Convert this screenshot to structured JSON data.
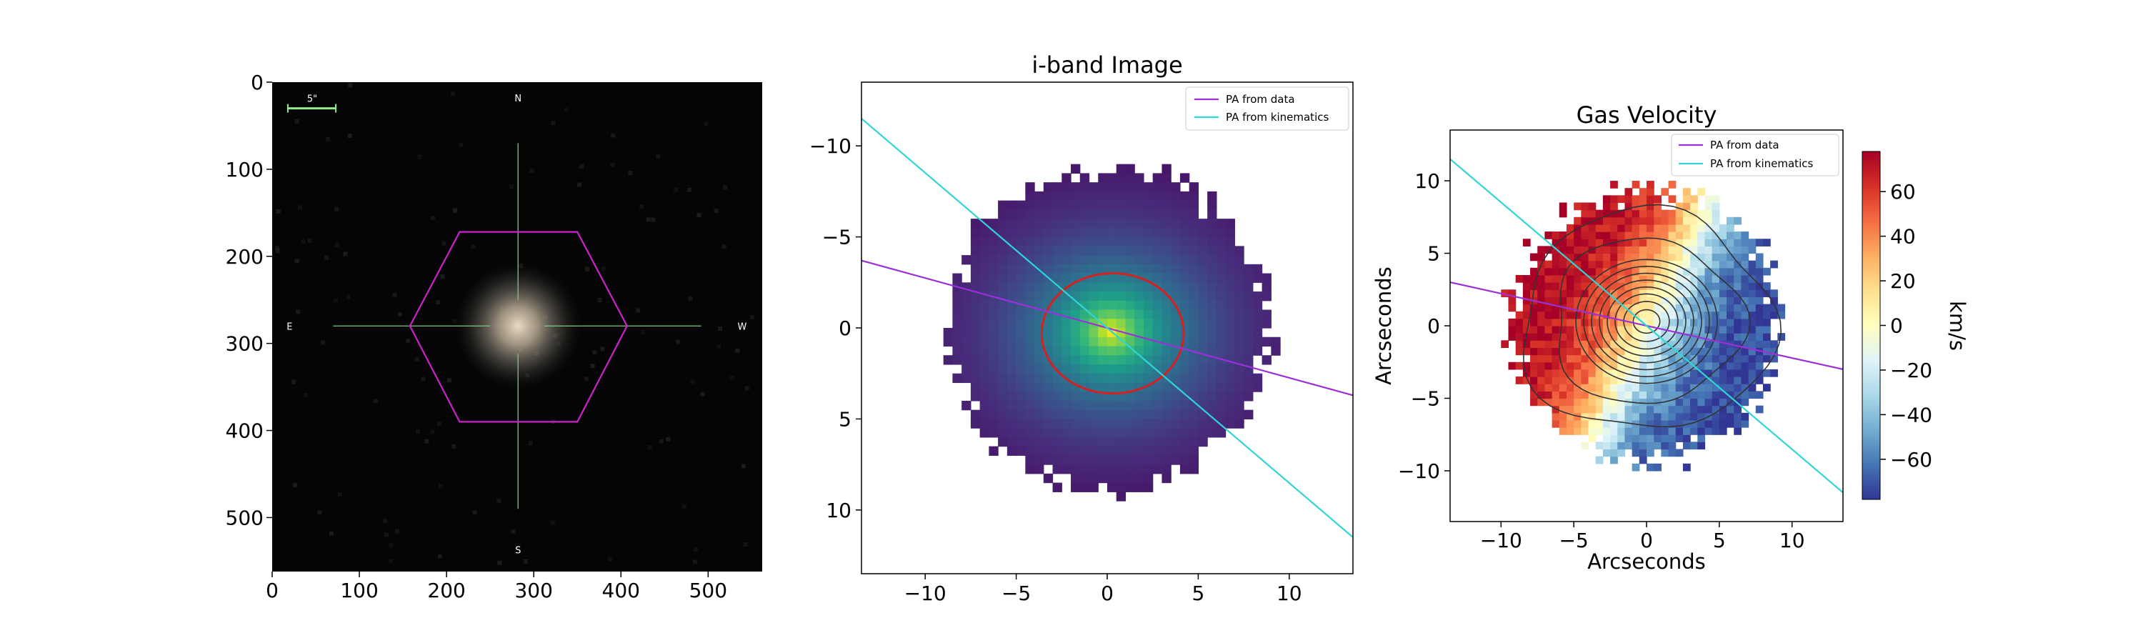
{
  "figure": {
    "panels": [
      "sdss-image",
      "i-band-image",
      "gas-velocity"
    ]
  },
  "chart_data": [
    {
      "type": "image",
      "title": "",
      "xlabel": "",
      "ylabel": "",
      "xlim": [
        0,
        562
      ],
      "ylim": [
        562,
        0
      ],
      "xticks": [
        "0",
        "100",
        "200",
        "300",
        "400",
        "500"
      ],
      "yticks": [
        "0",
        "100",
        "200",
        "300",
        "400",
        "500"
      ],
      "compass": {
        "north": "N",
        "south": "S",
        "east": "E",
        "west": "W"
      },
      "scale_bar": "5\"",
      "galaxy_center": [
        282,
        280
      ],
      "ifu_hexagon": [
        [
          215,
          172
        ],
        [
          350,
          172
        ],
        [
          407,
          280
        ],
        [
          350,
          390
        ],
        [
          215,
          390
        ],
        [
          158,
          280
        ]
      ],
      "colors": {
        "background": "#050505",
        "hexagon": "#cc22cc",
        "crosshair": "#7fc77f",
        "scale_bar": "#90ee90"
      }
    },
    {
      "type": "heatmap",
      "title": "i-band Image",
      "xlabel": "",
      "ylabel": "",
      "xlim": [
        -13.5,
        13.5
      ],
      "ylim": [
        13.5,
        -13.5
      ],
      "xticks": [
        "−10",
        "−5",
        "0",
        "5",
        "10"
      ],
      "yticks": [
        "−10",
        "−5",
        "0",
        "5",
        "10"
      ],
      "legend": {
        "position": "top-right",
        "entries": [
          "PA from data",
          "PA from kinematics"
        ]
      },
      "pa_lines": [
        {
          "name": "PA from data",
          "color": "#9b30d8",
          "points": [
            [
              -13.5,
              -3.7
            ],
            [
              13.5,
              3.7
            ]
          ]
        },
        {
          "name": "PA from kinematics",
          "color": "#30d5d5",
          "points": [
            [
              -13.5,
              -11.5
            ],
            [
              13.5,
              11.5
            ]
          ]
        }
      ],
      "ellipse": {
        "cx": 0.3,
        "cy": 0.3,
        "rx": 3.9,
        "ry": 3.3,
        "color": "#d62020"
      },
      "map": {
        "radius": 9.5,
        "core_scale": 3.2,
        "colormap": "viridis"
      }
    },
    {
      "type": "heatmap",
      "title": "Gas Velocity",
      "xlabel": "Arcseconds",
      "ylabel": "Arcseconds",
      "xlim": [
        -13.5,
        13.5
      ],
      "ylim": [
        -13.5,
        13.5
      ],
      "xticks": [
        "−10",
        "−5",
        "0",
        "5",
        "10"
      ],
      "yticks": [
        "−10",
        "−5",
        "0",
        "5",
        "10"
      ],
      "legend": {
        "position": "top-right",
        "entries": [
          "PA from data",
          "PA from kinematics"
        ]
      },
      "pa_lines": [
        {
          "name": "PA from data",
          "color": "#9b30d8",
          "points": [
            [
              -13.5,
              3.0
            ],
            [
              13.5,
              -3.0
            ]
          ]
        },
        {
          "name": "PA from kinematics",
          "color": "#30d5d5",
          "points": [
            [
              -13.5,
              11.5
            ],
            [
              13.5,
              -11.5
            ]
          ]
        }
      ],
      "colorbar": {
        "label": "km/s",
        "range": [
          -78,
          78
        ],
        "ticks": [
          "60",
          "40",
          "20",
          "0",
          "−20",
          "−40",
          "−60"
        ],
        "colormap": "RdYlBu_r"
      },
      "contours": {
        "levels": [
          0.85,
          1.45,
          2.0,
          2.5,
          3.0,
          3.5,
          4.0,
          4.5,
          6.0,
          8.0
        ],
        "color": "#333333",
        "center": [
          0,
          0.3
        ]
      },
      "map": {
        "radius": 9.5,
        "velocity_amplitude": 75
      }
    }
  ]
}
